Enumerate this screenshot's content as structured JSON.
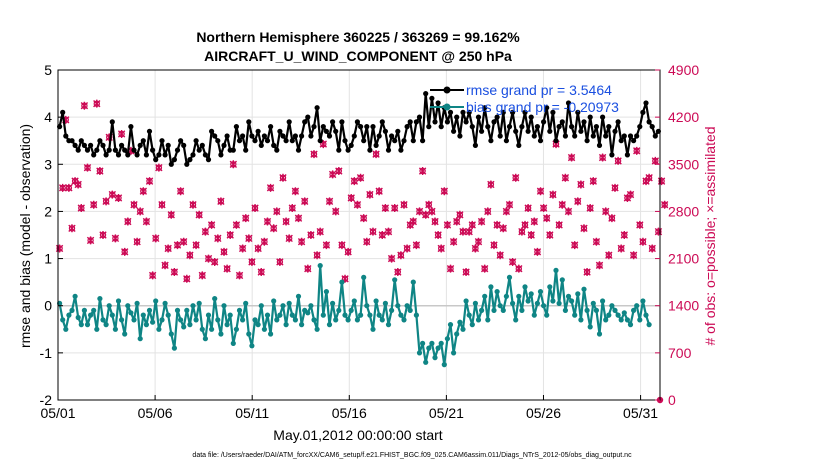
{
  "chart_data": {
    "type": "line",
    "title": "Northern Hemisphere 360225 / 363269 = 99.162%",
    "subtitle": "AIRCRAFT_U_WIND_COMPONENT @ 250 hPa",
    "xlabel": "May.01,2012 00:00:00 start",
    "ylabel_left": "rmse and bias (model - observation)",
    "ylabel_right": "# of obs: o=possible; ×=assimilated",
    "footnote": "data file: /Users/raeder/DAI/ATM_forcXX/CAM6_setup/f.e21.FHIST_BGC.f09_025.CAM6assim.011/Diags_NTrS_2012-05/obs_diag_output.nc",
    "x_tick_labels": [
      "05/01",
      "05/06",
      "05/11",
      "05/16",
      "05/21",
      "05/26",
      "05/31"
    ],
    "x_tick_days": [
      1,
      6,
      11,
      16,
      21,
      26,
      31
    ],
    "xlim": [
      1,
      32
    ],
    "ylim_left": [
      -2,
      5
    ],
    "ylim_right": [
      0,
      4900
    ],
    "y_left_ticks": [
      "-2",
      "-1",
      "0",
      "1",
      "2",
      "3",
      "4",
      "5"
    ],
    "y_right_ticks": [
      "0",
      "700",
      "1400",
      "2100",
      "2800",
      "3500",
      "4200",
      "4900"
    ],
    "grid": true,
    "legend_position": "top-right",
    "colors": {
      "rmse": "#000000",
      "bias": "#0f8585",
      "obs": "#cc0a55",
      "legend_text": "#1a4fe0",
      "zero_line": "#c8c8c8"
    },
    "series": [
      {
        "name": "rmse grand pr = 3.5464",
        "axis": "left",
        "values": [
          3.8,
          4.1,
          3.6,
          3.5,
          3.5,
          3.4,
          3.3,
          3.5,
          3.4,
          3.3,
          3.4,
          3.2,
          3.3,
          3.5,
          3.4,
          3.2,
          3.3,
          3.9,
          3.3,
          3.2,
          3.4,
          3.3,
          3.2,
          3.8,
          3.3,
          3.2,
          3.4,
          3.5,
          3.2,
          3.7,
          3.3,
          3.1,
          3.2,
          3.5,
          3.2,
          3.4,
          3.0,
          3.1,
          3.3,
          3.5,
          3.4,
          3.0,
          3.1,
          3.2,
          3.5,
          3.3,
          3.4,
          3.2,
          3.1,
          3.7,
          3.6,
          3.5,
          3.2,
          3.4,
          3.6,
          3.3,
          3.3,
          3.8,
          3.5,
          3.6,
          3.3,
          3.9,
          3.6,
          3.5,
          3.7,
          3.4,
          3.6,
          3.5,
          3.8,
          3.4,
          3.3,
          3.7,
          3.6,
          3.5,
          3.9,
          3.5,
          3.6,
          3.3,
          3.6,
          3.9,
          4.0,
          3.6,
          3.8,
          4.2,
          3.5,
          3.8,
          3.7,
          3.6,
          3.9,
          3.7,
          3.3,
          3.9,
          3.5,
          3.3,
          3.4,
          3.6,
          3.9,
          3.8,
          3.5,
          3.8,
          3.3,
          3.8,
          3.4,
          3.6,
          3.9,
          3.7,
          3.3,
          3.6,
          3.5,
          3.7,
          3.3,
          3.5,
          3.8,
          3.9,
          3.5,
          3.9,
          4.0,
          3.5,
          4.5,
          3.8,
          4.4,
          3.9,
          4.3,
          3.8,
          4.2,
          3.9,
          4.1,
          3.7,
          4.0,
          3.6,
          4.1,
          3.9,
          4.1,
          3.8,
          3.4,
          4.0,
          3.7,
          4.2,
          3.8,
          3.5,
          3.9,
          4.0,
          3.6,
          4.1,
          3.5,
          3.8,
          4.1,
          3.7,
          3.4,
          3.8,
          4.1,
          3.7,
          4.0,
          3.6,
          3.8,
          3.5,
          3.9,
          4.2,
          3.7,
          4.1,
          3.5,
          3.8,
          3.9,
          3.6,
          4.3,
          3.8,
          3.6,
          4.1,
          3.7,
          3.9,
          3.5,
          4.0,
          3.6,
          3.8,
          3.4,
          4.0,
          3.6,
          3.8,
          3.2,
          3.7,
          3.9,
          3.5,
          3.6,
          3.2,
          3.6,
          3.5,
          3.6,
          3.8,
          4.1,
          4.3,
          3.9,
          3.8,
          3.6,
          3.7
        ]
      },
      {
        "name": "bias grand pr = -0.20973",
        "axis": "left",
        "values": [
          0.05,
          -0.3,
          -0.5,
          -0.2,
          -0.1,
          0.2,
          -0.25,
          -0.4,
          -0.1,
          -0.4,
          -0.2,
          -0.1,
          -0.5,
          0.15,
          -0.3,
          -0.4,
          0.0,
          -0.2,
          -0.5,
          0.1,
          -0.3,
          -0.6,
          0.0,
          -0.15,
          -0.3,
          0.05,
          -0.7,
          -0.2,
          -0.4,
          -0.1,
          -0.35,
          0.1,
          -0.5,
          -0.3,
          0.05,
          -0.2,
          -0.6,
          -0.9,
          -0.1,
          -0.3,
          -0.45,
          -0.1,
          -0.4,
          0.0,
          -0.3,
          0.05,
          -0.5,
          -0.7,
          -0.2,
          -0.5,
          0.15,
          -0.3,
          -0.6,
          0.0,
          -0.4,
          -0.2,
          -0.8,
          -0.5,
          -0.1,
          -0.3,
          0.05,
          -0.6,
          -0.85,
          -0.3,
          -0.4,
          0.0,
          -0.5,
          -0.2,
          -0.6,
          0.1,
          -0.3,
          -0.2,
          0.0,
          -0.4,
          0.05,
          -0.2,
          -0.3,
          0.2,
          -0.4,
          -0.1,
          -0.15,
          0.0,
          -0.3,
          -0.5,
          0.85,
          -0.2,
          0.3,
          -0.4,
          0.05,
          -0.3,
          -0.1,
          0.5,
          -0.2,
          -0.3,
          -0.1,
          0.1,
          -0.3,
          -0.2,
          0.6,
          0.0,
          -0.2,
          -0.5,
          0.1,
          -0.2,
          -0.3,
          0.05,
          -0.4,
          -0.1,
          0.55,
          0.0,
          -0.2,
          -0.3,
          0.0,
          -0.1,
          0.5,
          -0.2,
          -1.0,
          -0.8,
          -1.2,
          -0.9,
          -0.8,
          -1.1,
          -0.9,
          -0.8,
          -1.25,
          -0.7,
          -0.4,
          -1.0,
          -0.6,
          -0.35,
          -0.5,
          0.1,
          -0.2,
          -0.4,
          0.05,
          -0.3,
          -0.1,
          0.2,
          -0.3,
          0.4,
          -0.1,
          0.3,
          0.0,
          -0.1,
          0.2,
          0.6,
          0.05,
          -0.3,
          0.2,
          -0.1,
          0.4,
          0.1,
          0.25,
          -0.2,
          0.05,
          0.3,
          0.0,
          -0.2,
          0.4,
          0.1,
          0.75,
          0.05,
          0.55,
          -0.1,
          0.2,
          0.1,
          -0.2,
          0.25,
          -0.3,
          0.35,
          -0.1,
          -0.45,
          0.05,
          -0.1,
          -0.6,
          0.1,
          -0.3,
          -0.2,
          0.0,
          -0.1,
          -0.2,
          -0.3,
          -0.15,
          -0.3,
          -0.4,
          -0.1,
          0.0,
          -0.3,
          0.1,
          -0.2,
          -0.4
        ]
      },
      {
        "name": "# of obs",
        "axis": "right",
        "values": [
          2250,
          3150,
          4160,
          3150,
          2550,
          3250,
          3200,
          2850,
          4370,
          3450,
          2370,
          2900,
          4400,
          3400,
          2450,
          2950,
          3900,
          3050,
          2400,
          3000,
          3950,
          2200,
          2650,
          3700,
          2900,
          2350,
          2800,
          3100,
          2650,
          3250,
          1850,
          2400,
          3450,
          2900,
          2000,
          2250,
          2750,
          1900,
          2300,
          3100,
          2350,
          1800,
          2150,
          2900,
          2300,
          2750,
          1850,
          2500,
          2100,
          2600,
          2050,
          2400,
          2950,
          2200,
          1950,
          2450,
          3500,
          2600,
          1850,
          2250,
          2700,
          2400,
          2050,
          2850,
          2250,
          1900,
          2350,
          2650,
          3150,
          2550,
          2800,
          2050,
          3300,
          2650,
          2400,
          2850,
          3100,
          2700,
          2350,
          2950,
          1950,
          2450,
          3650,
          2150,
          2500,
          3800,
          2300,
          2950,
          3350,
          2800,
          3400,
          2300,
          1800,
          2200,
          3000,
          3250,
          2900,
          3300,
          2700,
          2350,
          3050,
          2500,
          3650,
          3100,
          2450,
          2850,
          2500,
          2100,
          2850,
          1900,
          2150,
          2900,
          2250,
          2600,
          2650,
          2300,
          2800,
          3400,
          2750,
          2900,
          2800,
          2650,
          2450,
          2250,
          3100,
          2600,
          1950,
          2350,
          2650,
          2750,
          2500,
          1900,
          2500,
          2600,
          2250,
          2350,
          2650,
          1950,
          2800,
          3200,
          2300,
          2600,
          2150,
          2550,
          2800,
          2900,
          2050,
          3300,
          1950,
          2500,
          2600,
          2850,
          2450,
          2650,
          2200,
          3100,
          2850,
          2700,
          2450,
          3050,
          3800,
          2600,
          2900,
          3300,
          2800,
          3600,
          2300,
          2950,
          3200,
          2550,
          1900,
          2850,
          3250,
          2350,
          2000,
          3600,
          2800,
          2150,
          2700,
          3150,
          3550,
          2250,
          2450,
          3000,
          3050,
          2150,
          3700,
          2600,
          2350,
          3250,
          3300,
          2250,
          3550,
          2500,
          3250,
          2900
        ]
      }
    ]
  }
}
